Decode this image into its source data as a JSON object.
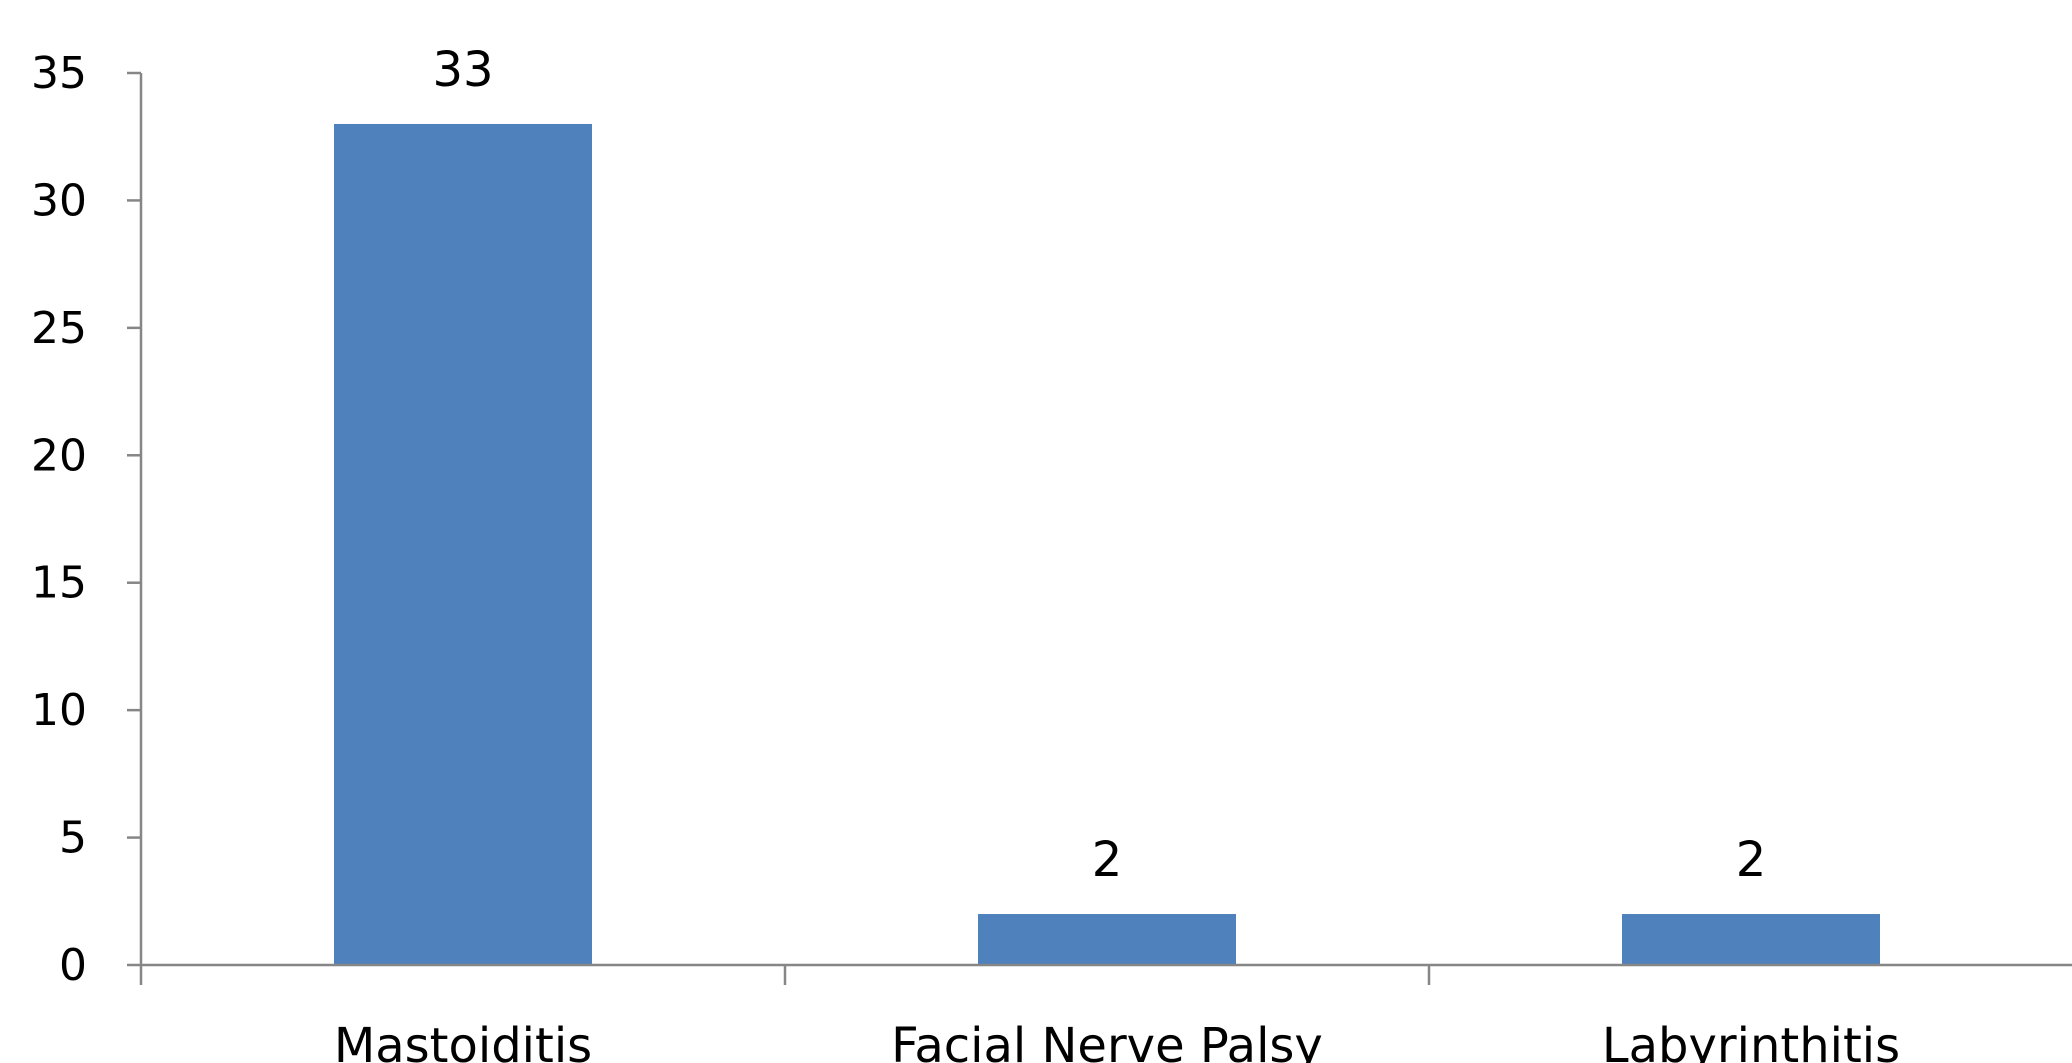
{
  "chart_data": {
    "type": "bar",
    "categories": [
      "Mastoiditis",
      "Facial Nerve Palsy",
      "Labyrinthitis"
    ],
    "series": [
      {
        "values": [
          33,
          2,
          2
        ],
        "color": "#4F81BD"
      }
    ],
    "data_labels": [
      "33",
      "2",
      "2"
    ],
    "ylim": [
      0,
      35
    ],
    "yticks": [
      0,
      5,
      10,
      15,
      20,
      25,
      30,
      35
    ],
    "ytick_labels": [
      "0",
      "5",
      "10",
      "15",
      "20",
      "25",
      "30",
      "35"
    ],
    "grid": false,
    "legend": "none",
    "title": "",
    "xlabel": "",
    "ylabel": ""
  }
}
